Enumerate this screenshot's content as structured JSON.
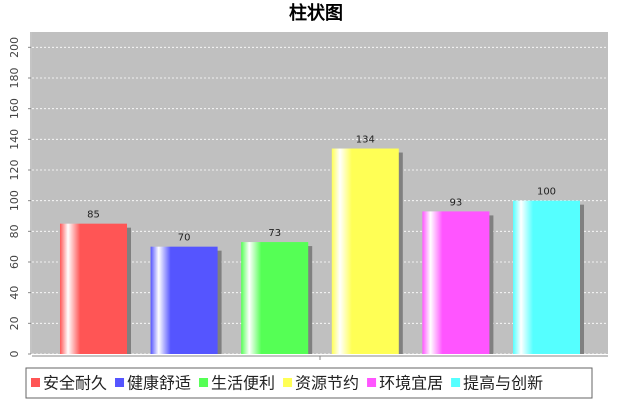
{
  "chart_data": {
    "type": "bar",
    "title": "柱状图",
    "categories": [
      null
    ],
    "series": [
      {
        "name": "安全耐久",
        "color": "#ff5555",
        "values": [
          85
        ]
      },
      {
        "name": "健康舒适",
        "color": "#5555ff",
        "values": [
          70
        ]
      },
      {
        "name": "生活便利",
        "color": "#55ff55",
        "values": [
          73
        ]
      },
      {
        "name": "资源节约",
        "color": "#ffff55",
        "values": [
          134
        ]
      },
      {
        "name": "环境宜居",
        "color": "#ff55ff",
        "values": [
          93
        ]
      },
      {
        "name": "提高与创新",
        "color": "#55ffff",
        "values": [
          100
        ]
      }
    ],
    "ylim": [
      0,
      210
    ],
    "yticks": [
      0,
      20,
      40,
      60,
      80,
      100,
      120,
      140,
      160,
      180,
      200
    ],
    "grid": true
  }
}
